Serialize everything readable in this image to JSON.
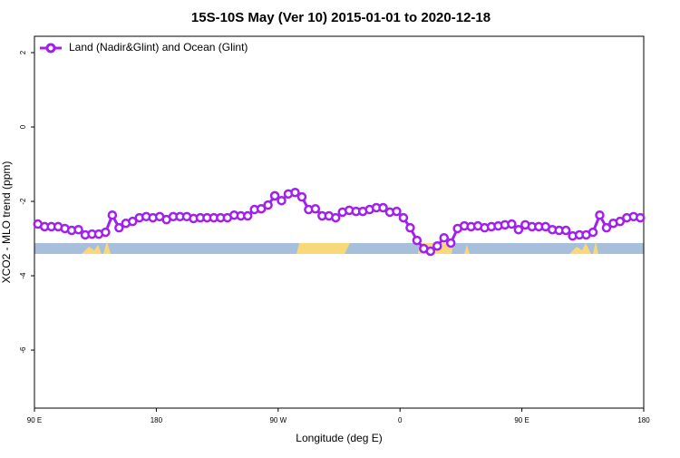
{
  "chart_data": {
    "type": "line",
    "title": "15S-10S May (Ver 10)   2015-01-01 to 2020-12-18",
    "x_label": "Longitude (deg E)",
    "y_label": "XCO2 - MLO trend (ppm)",
    "xlim": [
      90,
      540
    ],
    "xticks": [
      {
        "value": 90,
        "label": "90 E"
      },
      {
        "value": 180,
        "label": "180"
      },
      {
        "value": 270,
        "label": "90 W"
      },
      {
        "value": 360,
        "label": "0"
      },
      {
        "value": 450,
        "label": "90 E"
      },
      {
        "value": 540,
        "label": "180"
      }
    ],
    "ylim": [
      -7.56,
      2.44
    ],
    "yticks": [
      -6,
      -4,
      -2,
      0,
      2
    ],
    "legend_position": "top-left",
    "x": [
      92.5,
      97.5,
      102.5,
      107.5,
      112.5,
      117.5,
      122.5,
      127.5,
      132.5,
      137.5,
      142.5,
      147.5,
      152.5,
      157.5,
      162.5,
      167.5,
      172.5,
      177.5,
      182.5,
      187.5,
      192.5,
      197.5,
      202.5,
      207.5,
      212.5,
      217.5,
      222.5,
      227.5,
      232.5,
      237.5,
      242.5,
      247.5,
      252.5,
      257.5,
      262.5,
      267.5,
      272.5,
      277.5,
      282.5,
      287.5,
      292.5,
      297.5,
      302.5,
      307.5,
      312.5,
      317.5,
      322.5,
      327.5,
      332.5,
      337.5,
      342.5,
      347.5,
      352.5,
      357.5,
      362.5,
      367.5,
      372.5,
      377.5,
      382.5,
      387.5,
      392.5,
      397.5,
      402.5,
      407.5,
      412.5,
      417.5,
      422.5,
      427.5,
      432.5,
      437.5,
      442.5,
      447.5,
      452.5,
      457.5,
      462.5,
      467.5,
      472.5,
      477.5,
      482.5,
      487.5,
      492.5,
      497.5,
      502.5,
      507.5,
      512.5,
      517.5,
      522.5,
      527.5,
      532.5,
      537.5
    ],
    "series": [
      {
        "name": "Land (Nadir&Glint) and Ocean (Glint)",
        "color": "#a020f0",
        "values": [
          -2.61,
          -2.68,
          -2.68,
          -2.68,
          -2.73,
          -2.78,
          -2.76,
          -2.9,
          -2.88,
          -2.88,
          -2.83,
          -2.37,
          -2.71,
          -2.59,
          -2.54,
          -2.44,
          -2.41,
          -2.44,
          -2.41,
          -2.49,
          -2.41,
          -2.41,
          -2.41,
          -2.46,
          -2.44,
          -2.44,
          -2.44,
          -2.44,
          -2.44,
          -2.37,
          -2.39,
          -2.39,
          -2.22,
          -2.2,
          -2.1,
          -1.85,
          -1.98,
          -1.8,
          -1.76,
          -1.88,
          -2.22,
          -2.2,
          -2.39,
          -2.39,
          -2.44,
          -2.29,
          -2.24,
          -2.27,
          -2.27,
          -2.22,
          -2.17,
          -2.17,
          -2.29,
          -2.27,
          -2.44,
          -2.71,
          -3.05,
          -3.27,
          -3.34,
          -3.2,
          -2.98,
          -3.12,
          -2.73,
          -2.66,
          -2.68,
          -2.66,
          -2.71,
          -2.68,
          -2.66,
          -2.63,
          -2.61,
          -2.76,
          -2.63,
          -2.68,
          -2.68,
          -2.68,
          -2.76,
          -2.78,
          -2.78,
          -2.93,
          -2.9,
          -2.9,
          -2.83,
          -2.37,
          -2.71,
          -2.59,
          -2.54,
          -2.44,
          -2.41,
          -2.44
        ]
      }
    ]
  }
}
